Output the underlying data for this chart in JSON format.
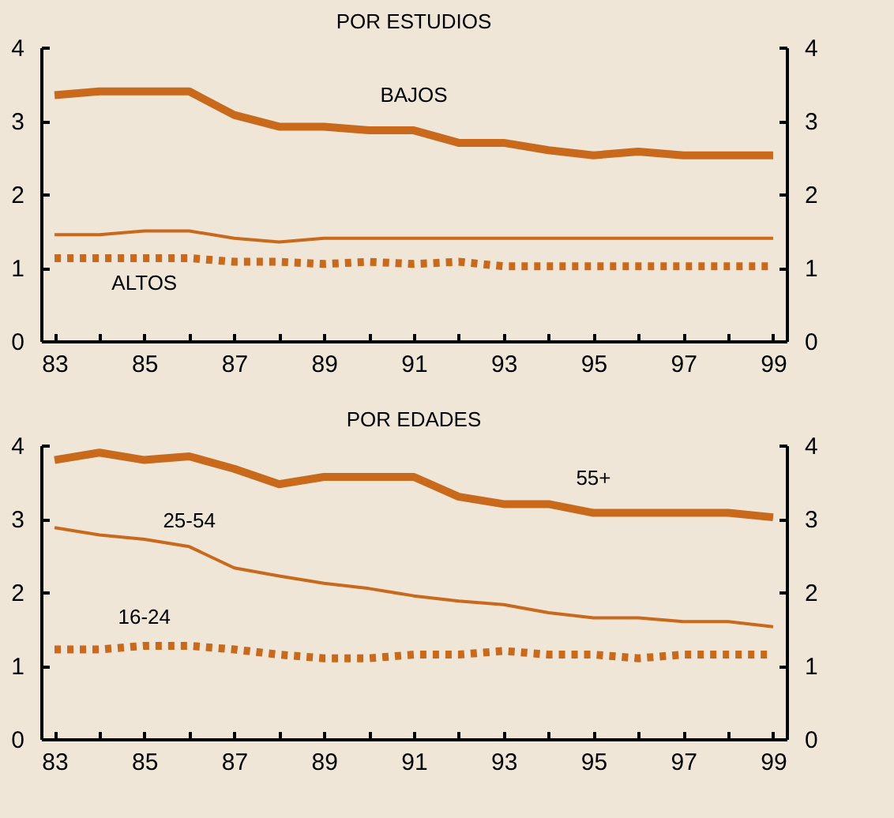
{
  "chart_data": [
    {
      "type": "line",
      "title": "POR ESTUDIOS",
      "categories": [
        "83",
        null,
        "85",
        null,
        "87",
        null,
        "89",
        null,
        "91",
        null,
        "93",
        null,
        "95",
        null,
        "97",
        null,
        "99"
      ],
      "ylim": [
        0,
        4
      ],
      "yticks": [
        0,
        1,
        2,
        3,
        4
      ],
      "y2lim": [
        0,
        4
      ],
      "y2ticks": [
        0,
        1,
        2,
        3,
        4
      ],
      "grid": false,
      "series": [
        {
          "name": "BAJOS",
          "color": "#c8691c",
          "line_style": "solid",
          "values": [
            3.35,
            3.4,
            3.4,
            3.4,
            3.08,
            2.92,
            2.92,
            2.87,
            2.87,
            2.7,
            2.7,
            2.6,
            2.53,
            2.58,
            2.53,
            2.53,
            2.53
          ]
        },
        {
          "color": "#c8691c",
          "line_style": "solid",
          "values": [
            1.45,
            1.45,
            1.5,
            1.5,
            1.4,
            1.35,
            1.4,
            1.4,
            1.4,
            1.4,
            1.4,
            1.4,
            1.4,
            1.4,
            1.4,
            1.4,
            1.4
          ]
        },
        {
          "name": "ALTOS",
          "color": "#c8691c",
          "line_style": "dotted",
          "values": [
            1.13,
            1.13,
            1.13,
            1.13,
            1.08,
            1.08,
            1.05,
            1.08,
            1.05,
            1.08,
            1.02,
            1.02,
            1.02,
            1.02,
            1.02,
            1.02,
            1.02
          ]
        }
      ]
    },
    {
      "type": "line",
      "title": "POR EDADES",
      "categories": [
        "83",
        null,
        "85",
        null,
        "87",
        null,
        "89",
        null,
        "91",
        null,
        "93",
        null,
        "95",
        null,
        "97",
        null,
        "99"
      ],
      "ylim": [
        0,
        4
      ],
      "yticks": [
        0,
        1,
        2,
        3,
        4
      ],
      "y2lim": [
        0,
        4
      ],
      "y2ticks": [
        0,
        1,
        2,
        3,
        4
      ],
      "grid": false,
      "series": [
        {
          "name": "55+",
          "color": "#c8691c",
          "line_style": "solid",
          "values": [
            3.8,
            3.9,
            3.8,
            3.85,
            3.68,
            3.47,
            3.57,
            3.57,
            3.57,
            3.3,
            3.2,
            3.2,
            3.08,
            3.08,
            3.08,
            3.08,
            3.02
          ]
        },
        {
          "name": "25-54",
          "color": "#c8691c",
          "line_style": "solid",
          "values": [
            2.88,
            2.78,
            2.72,
            2.62,
            2.33,
            2.22,
            2.12,
            2.05,
            1.95,
            1.88,
            1.83,
            1.72,
            1.65,
            1.65,
            1.6,
            1.6,
            1.53
          ]
        },
        {
          "name": "16-24",
          "color": "#c8691c",
          "line_style": "dotted",
          "values": [
            1.22,
            1.22,
            1.27,
            1.27,
            1.22,
            1.15,
            1.1,
            1.1,
            1.15,
            1.15,
            1.2,
            1.15,
            1.15,
            1.1,
            1.15,
            1.15,
            1.15
          ]
        }
      ]
    }
  ]
}
